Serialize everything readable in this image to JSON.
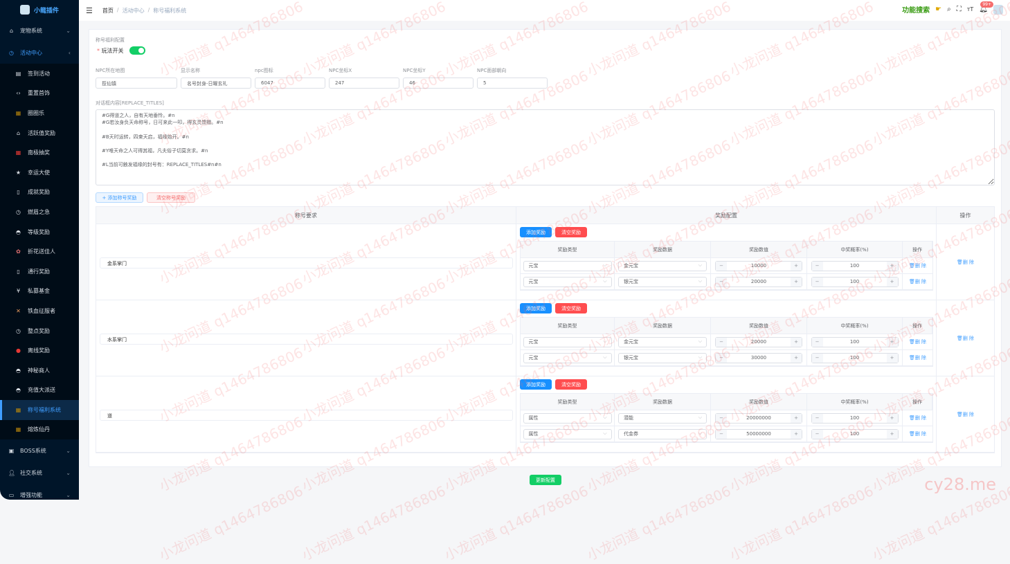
{
  "app": {
    "name": "小龍插件"
  },
  "breadcrumb": [
    "首页",
    "活动中心",
    "称号福利系统"
  ],
  "header": {
    "feature_search": "功能搜索",
    "notification_badge": "99+"
  },
  "sidebar": {
    "groups_top": [
      {
        "label": "宠物系统",
        "icon": "pet-icon"
      },
      {
        "label": "活动中心",
        "icon": "clock-icon"
      }
    ],
    "items": [
      {
        "label": "签到活动",
        "icon": "file-icon"
      },
      {
        "label": "重置首饰",
        "icon": "code-icon"
      },
      {
        "label": "圈圈乐",
        "icon": "gift-icon"
      },
      {
        "label": "活跃值奖励",
        "icon": "pet-icon"
      },
      {
        "label": "南极抽奖",
        "icon": "gift-red-icon"
      },
      {
        "label": "幸运大使",
        "icon": "star-icon"
      },
      {
        "label": "成就奖励",
        "icon": "book-icon"
      },
      {
        "label": "燃眉之急",
        "icon": "clock-icon"
      },
      {
        "label": "等级奖励",
        "icon": "gauge-icon"
      },
      {
        "label": "折花送佳人",
        "icon": "flower-icon"
      },
      {
        "label": "通行奖励",
        "icon": "book-icon"
      },
      {
        "label": "私募基金",
        "icon": "yen-icon"
      },
      {
        "label": "铁血征服者",
        "icon": "swords-icon"
      },
      {
        "label": "整点奖励",
        "icon": "clock-icon"
      },
      {
        "label": "离线奖励",
        "icon": "alert-icon"
      },
      {
        "label": "神秘商人",
        "icon": "gauge-icon"
      },
      {
        "label": "充值大派送",
        "icon": "gauge-icon"
      },
      {
        "label": "称号福利系统",
        "icon": "gift-icon",
        "active": true
      },
      {
        "label": "熔炼仙丹",
        "icon": "gift-icon"
      }
    ],
    "groups_bottom": [
      {
        "label": "BOSS系统",
        "icon": "boss-icon"
      },
      {
        "label": "社交系统",
        "icon": "users-icon"
      },
      {
        "label": "增强功能",
        "icon": "briefcase-icon"
      }
    ]
  },
  "config": {
    "section_title": "称号福利配置",
    "switch_label": "玩法开关",
    "switch_on": true,
    "fields": [
      {
        "label": "NPC所在地图",
        "value": "揽仙镇",
        "select": true
      },
      {
        "label": "显示名称",
        "value": "名号封身-日曜玄礼"
      },
      {
        "label": "npc图标",
        "value": "6047"
      },
      {
        "label": "NPC坐标X",
        "value": "247"
      },
      {
        "label": "NPC坐标Y",
        "value": "46"
      },
      {
        "label": "NPC面部朝向",
        "value": "5"
      }
    ],
    "dialog_label": "对话框内容[REPLACE_TITLES]",
    "dialog_text": "#G得道之人，自有天地垂怜。#n\n#G若汝身负天命称号，日可来此一叩，得玄灵馈赠。#n\n\n#B天时运转，四柬天启，福缘始开。#n\n\n#Y唯天命之人可得其福，凡夫俗子切莫贪求。#n\n\n#L当前可触发福缘的封号有：REPLACE_TITLES#n#n",
    "add_title_button": "+ 添加称号奖励",
    "clear_title_button": "清空称号奖励",
    "columns": [
      "称号要求",
      "奖励配置",
      "操作"
    ],
    "inner_columns": [
      "奖励类型",
      "奖励数据",
      "奖励数值",
      "中奖概率(%)",
      "操作"
    ],
    "add_reward": "添加奖励",
    "clear_reward": "清空奖励",
    "delete": "删 除",
    "rows": [
      {
        "title": "金系掌门",
        "rewards": [
          {
            "type": "元宝",
            "data": "金元宝",
            "amount": "10000",
            "prob": "100"
          },
          {
            "type": "元宝",
            "data": "银元宝",
            "amount": "20000",
            "prob": "100"
          }
        ]
      },
      {
        "title": "水系掌门",
        "rewards": [
          {
            "type": "元宝",
            "data": "金元宝",
            "amount": "20000",
            "prob": "100"
          },
          {
            "type": "元宝",
            "data": "银元宝",
            "amount": "30000",
            "prob": "100"
          }
        ]
      },
      {
        "title": "道",
        "rewards": [
          {
            "type": "属性",
            "data": "潜能",
            "amount": "20000000",
            "prob": "100"
          },
          {
            "type": "属性",
            "data": "代金券",
            "amount": "50000000",
            "prob": "100"
          }
        ]
      }
    ],
    "submit": "更新配置"
  },
  "watermark": "小龙问道 q1464786806",
  "corner_watermark": "cy28.me",
  "colors": {
    "primary": "#409eff",
    "danger": "#f56c6c",
    "success": "#13ce66",
    "sidebar": "#001529"
  }
}
